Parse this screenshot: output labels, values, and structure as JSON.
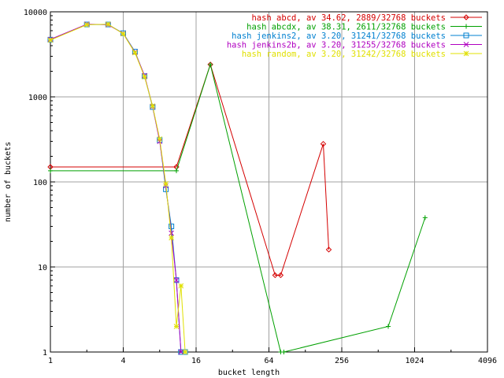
{
  "chart_data": {
    "type": "line",
    "title": "",
    "xlabel": "bucket length",
    "ylabel": "number of buckets",
    "x_scale": "log2",
    "y_scale": "log10",
    "xlim": [
      1,
      4096
    ],
    "ylim": [
      1,
      10000
    ],
    "grid": true,
    "legend_position": "top-right",
    "x_ticks": [
      {
        "value": 1,
        "label": "1"
      },
      {
        "value": 4,
        "label": "4"
      },
      {
        "value": 16,
        "label": "16"
      },
      {
        "value": 64,
        "label": "64"
      },
      {
        "value": 256,
        "label": "256"
      },
      {
        "value": 1024,
        "label": "1024"
      },
      {
        "value": 4096,
        "label": "4096"
      }
    ],
    "y_ticks": [
      {
        "value": 1,
        "label": "1"
      },
      {
        "value": 10,
        "label": "10"
      },
      {
        "value": 100,
        "label": "100"
      },
      {
        "value": 1000,
        "label": "1000"
      },
      {
        "value": 10000,
        "label": "10000"
      }
    ],
    "series": [
      {
        "name": "hash abcd, av 34.62, 2889/32768 buckets",
        "color": "#d40000",
        "marker": "diamond",
        "points": [
          [
            1,
            150
          ],
          [
            11,
            150
          ],
          [
            21,
            2400
          ],
          [
            72,
            8
          ],
          [
            80,
            8
          ],
          [
            180,
            280
          ],
          [
            200,
            16
          ]
        ]
      },
      {
        "name": "hash abcdx, av 38.31, 2611/32768 buckets",
        "color": "#00a000",
        "marker": "plus",
        "points": [
          [
            1,
            135
          ],
          [
            11,
            135
          ],
          [
            21,
            2400
          ],
          [
            80,
            1
          ],
          [
            85,
            1
          ],
          [
            620,
            2
          ],
          [
            1250,
            38
          ]
        ]
      },
      {
        "name": "hash jenkins2, av 3.20, 31241/32768 buckets",
        "color": "#0080d0",
        "marker": "square",
        "points": [
          [
            1,
            4700
          ],
          [
            2,
            7100
          ],
          [
            3,
            7100
          ],
          [
            4,
            5600
          ],
          [
            5,
            3400
          ],
          [
            6,
            1750
          ],
          [
            7,
            760
          ],
          [
            8,
            310
          ],
          [
            9,
            82
          ],
          [
            10,
            30
          ],
          [
            11,
            7
          ],
          [
            12,
            1
          ],
          [
            13,
            1
          ]
        ]
      },
      {
        "name": "hash jenkins2b, av 3.20, 31255/32768 buckets",
        "color": "#b000c0",
        "marker": "x",
        "points": [
          [
            1,
            4750
          ],
          [
            2,
            7150
          ],
          [
            3,
            7050
          ],
          [
            4,
            5550
          ],
          [
            5,
            3350
          ],
          [
            6,
            1780
          ],
          [
            7,
            770
          ],
          [
            8,
            300
          ],
          [
            9,
            90
          ],
          [
            10,
            25
          ],
          [
            11,
            7
          ],
          [
            12,
            1
          ]
        ]
      },
      {
        "name": "hash random, av 3.20, 31242/32768 buckets",
        "color": "#e0e000",
        "marker": "star",
        "points": [
          [
            1,
            4650
          ],
          [
            2,
            7050
          ],
          [
            3,
            7150
          ],
          [
            4,
            5500
          ],
          [
            5,
            3300
          ],
          [
            6,
            1720
          ],
          [
            7,
            780
          ],
          [
            8,
            320
          ],
          [
            9,
            95
          ],
          [
            10,
            22
          ],
          [
            11,
            2
          ],
          [
            12,
            6
          ],
          [
            13,
            1
          ]
        ]
      }
    ]
  }
}
